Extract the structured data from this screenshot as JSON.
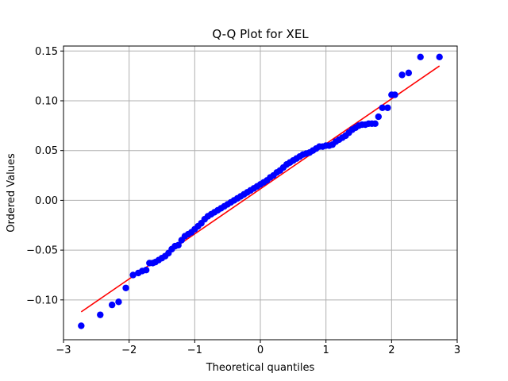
{
  "chart_data": {
    "type": "scatter",
    "title": "Q-Q Plot for XEL",
    "xlabel": "Theoretical quantiles",
    "ylabel": "Ordered Values",
    "xlim": [
      -3.0,
      3.0
    ],
    "ylim": [
      -0.14,
      0.155
    ],
    "xticks": [
      -3,
      -2,
      -1,
      0,
      1,
      2,
      3
    ],
    "xtick_labels": [
      "−3",
      "−2",
      "−1",
      "0",
      "1",
      "2",
      "3"
    ],
    "yticks": [
      -0.1,
      -0.05,
      0.0,
      0.05,
      0.1,
      0.15
    ],
    "ytick_labels": [
      "−0.10",
      "−0.05",
      "0.00",
      "0.05",
      "0.10",
      "0.15"
    ],
    "grid": true,
    "colors": {
      "points": "#0000ff",
      "fit_line": "#ff0000",
      "grid": "#b0b0b0"
    },
    "fit_line": {
      "x": [
        -2.73,
        2.73
      ],
      "y": [
        -0.112,
        0.135
      ]
    },
    "series": [
      {
        "x": [
          -2.73,
          -2.44,
          -2.26,
          -2.16,
          -2.05,
          -1.94,
          -1.86,
          -1.8,
          -1.74,
          -1.69,
          -1.64,
          -1.6,
          -1.55,
          -1.5,
          -1.45,
          -1.4,
          -1.35,
          -1.3,
          -1.25,
          -1.2,
          -1.15,
          -1.1,
          -1.05,
          -1.0,
          -0.95,
          -0.9,
          -0.85,
          -0.8,
          -0.75,
          -0.7,
          -0.65,
          -0.6,
          -0.55,
          -0.5,
          -0.45,
          -0.4,
          -0.35,
          -0.3,
          -0.25,
          -0.2,
          -0.15,
          -0.1,
          -0.05,
          0.0,
          0.05,
          0.1,
          0.15,
          0.2,
          0.25,
          0.3,
          0.35,
          0.4,
          0.45,
          0.5,
          0.55,
          0.6,
          0.65,
          0.7,
          0.75,
          0.8,
          0.85,
          0.9,
          0.95,
          1.0,
          1.05,
          1.1,
          1.15,
          1.2,
          1.25,
          1.3,
          1.35,
          1.4,
          1.45,
          1.5,
          1.55,
          1.6,
          1.65,
          1.7,
          1.75,
          1.8,
          1.86,
          1.94,
          2.0,
          2.05,
          2.16,
          2.26,
          2.44,
          2.73
        ],
        "y": [
          -0.126,
          -0.115,
          -0.105,
          -0.102,
          -0.088,
          -0.075,
          -0.073,
          -0.071,
          -0.07,
          -0.063,
          -0.063,
          -0.062,
          -0.06,
          -0.058,
          -0.056,
          -0.053,
          -0.049,
          -0.046,
          -0.045,
          -0.04,
          -0.036,
          -0.034,
          -0.032,
          -0.029,
          -0.026,
          -0.023,
          -0.019,
          -0.016,
          -0.014,
          -0.012,
          -0.01,
          -0.008,
          -0.006,
          -0.004,
          -0.002,
          0.0,
          0.002,
          0.004,
          0.006,
          0.008,
          0.01,
          0.012,
          0.014,
          0.016,
          0.018,
          0.02,
          0.023,
          0.025,
          0.028,
          0.03,
          0.033,
          0.036,
          0.038,
          0.04,
          0.042,
          0.044,
          0.046,
          0.047,
          0.048,
          0.05,
          0.052,
          0.054,
          0.054,
          0.055,
          0.055,
          0.056,
          0.059,
          0.061,
          0.063,
          0.065,
          0.068,
          0.071,
          0.073,
          0.075,
          0.076,
          0.076,
          0.077,
          0.077,
          0.077,
          0.084,
          0.093,
          0.093,
          0.106,
          0.106,
          0.126,
          0.128,
          0.144,
          0.144
        ]
      }
    ]
  }
}
